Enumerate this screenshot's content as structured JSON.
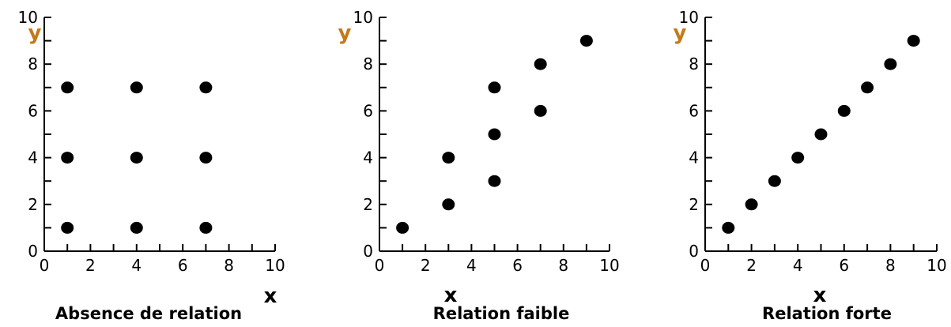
{
  "chart_data": [
    {
      "type": "scatter",
      "caption": "Absence de relation",
      "xlabel": "x",
      "ylabel": "y",
      "xlim": [
        0,
        10
      ],
      "ylim": [
        0,
        10
      ],
      "x_ticks": [
        "0",
        "2",
        "4",
        "6",
        "8",
        "10"
      ],
      "y_ticks": [
        "0",
        "2",
        "4",
        "6",
        "8",
        "10"
      ],
      "points": [
        {
          "x": 1,
          "y": 1
        },
        {
          "x": 1,
          "y": 4
        },
        {
          "x": 1,
          "y": 7
        },
        {
          "x": 4,
          "y": 1
        },
        {
          "x": 4,
          "y": 4
        },
        {
          "x": 4,
          "y": 7
        },
        {
          "x": 7,
          "y": 1
        },
        {
          "x": 7,
          "y": 4
        },
        {
          "x": 7,
          "y": 7
        }
      ]
    },
    {
      "type": "scatter",
      "caption": "Relation faible",
      "xlabel": "x",
      "ylabel": "y",
      "xlim": [
        0,
        10
      ],
      "ylim": [
        0,
        10
      ],
      "x_ticks": [
        "0",
        "2",
        "4",
        "6",
        "8",
        "10"
      ],
      "y_ticks": [
        "0",
        "2",
        "4",
        "6",
        "8",
        "10"
      ],
      "points": [
        {
          "x": 1,
          "y": 1
        },
        {
          "x": 3,
          "y": 2
        },
        {
          "x": 3,
          "y": 4
        },
        {
          "x": 5,
          "y": 3
        },
        {
          "x": 5,
          "y": 5
        },
        {
          "x": 5,
          "y": 7
        },
        {
          "x": 7,
          "y": 6
        },
        {
          "x": 7,
          "y": 8
        },
        {
          "x": 9,
          "y": 9
        }
      ]
    },
    {
      "type": "scatter",
      "caption": "Relation forte",
      "xlabel": "x",
      "ylabel": "y",
      "xlim": [
        0,
        10
      ],
      "ylim": [
        0,
        10
      ],
      "x_ticks": [
        "0",
        "2",
        "4",
        "6",
        "8",
        "10"
      ],
      "y_ticks": [
        "0",
        "2",
        "4",
        "6",
        "8",
        "10"
      ],
      "points": [
        {
          "x": 1,
          "y": 1
        },
        {
          "x": 2,
          "y": 2
        },
        {
          "x": 3,
          "y": 3
        },
        {
          "x": 4,
          "y": 4
        },
        {
          "x": 5,
          "y": 5
        },
        {
          "x": 6,
          "y": 6
        },
        {
          "x": 7,
          "y": 7
        },
        {
          "x": 8,
          "y": 8
        },
        {
          "x": 9,
          "y": 9
        }
      ]
    }
  ]
}
